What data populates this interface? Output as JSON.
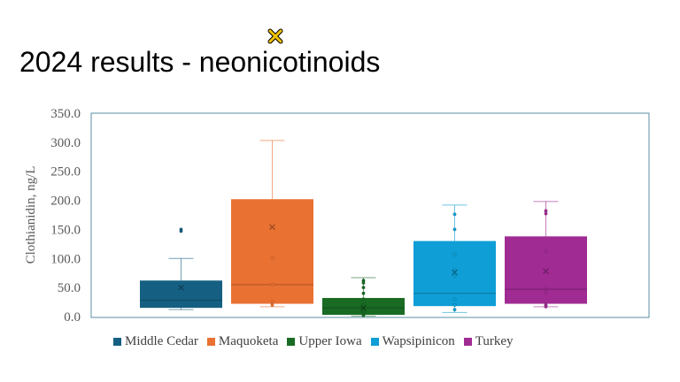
{
  "slide": {
    "title": "2024 results - neonicotinoids"
  },
  "icons": {
    "decoration": "x-mark-icon",
    "decoration_color": "#f2c200"
  },
  "chart_data": {
    "type": "box",
    "ylabel": "Clothianidin, ng/L",
    "xlabel": "",
    "ylim": [
      0,
      350
    ],
    "yticks": [
      "0.0",
      "50.0",
      "100.0",
      "150.0",
      "200.0",
      "250.0",
      "300.0",
      "350.0"
    ],
    "grid": false,
    "legend_position": "bottom",
    "series": [
      {
        "name": "Middle Cedar",
        "color": "#156082",
        "q1": 15,
        "median": 28,
        "q3": 62,
        "whisker_low": 12,
        "whisker_high": 100,
        "mean": 50,
        "points": [
          150,
          147
        ]
      },
      {
        "name": "Maquoketa",
        "color": "#e97132",
        "q1": 22,
        "median": 55,
        "q3": 202,
        "whisker_low": 17,
        "whisker_high": 303,
        "mean": 154,
        "points": [
          101,
          55,
          25,
          20
        ]
      },
      {
        "name": "Upper Iowa",
        "color": "#196b24",
        "q1": 3,
        "median": 15,
        "q3": 32,
        "whisker_low": 1,
        "whisker_high": 67,
        "mean": 15,
        "points": [
          62,
          58,
          50,
          40,
          30,
          20,
          10,
          5,
          2
        ]
      },
      {
        "name": "Wapsipinicon",
        "color": "#0f9ed5",
        "q1": 18,
        "median": 40,
        "q3": 130,
        "whisker_low": 7,
        "whisker_high": 192,
        "mean": 76,
        "points": [
          176,
          150,
          107,
          80,
          70,
          30,
          20,
          12
        ]
      },
      {
        "name": "Turkey",
        "color": "#a02b93",
        "q1": 22,
        "median": 47,
        "q3": 138,
        "whisker_low": 17,
        "whisker_high": 198,
        "mean": 78,
        "points": [
          182,
          177,
          112,
          50,
          42,
          20,
          17
        ]
      }
    ]
  }
}
